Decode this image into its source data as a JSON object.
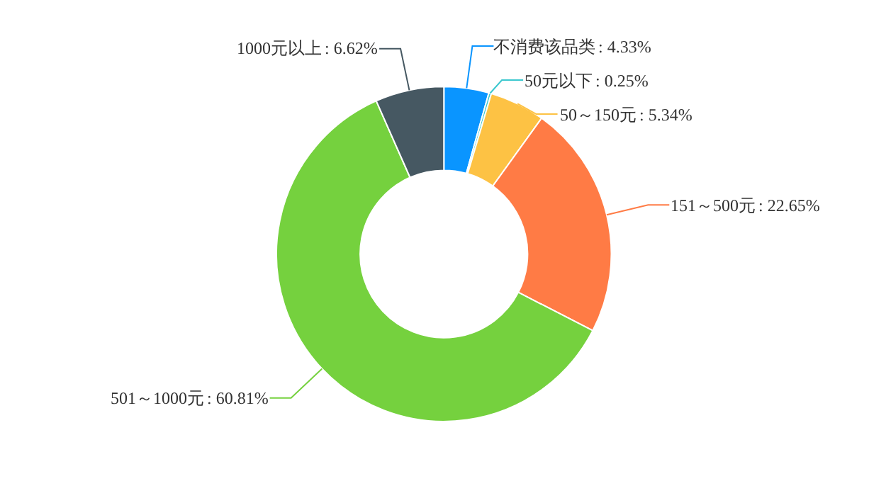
{
  "chart_data": {
    "type": "donut",
    "categories": [
      "不消费该品类",
      "50元以下",
      "50～150元",
      "151～500元",
      "501～1000元",
      "1000元以上"
    ],
    "values": [
      4.33,
      0.25,
      5.34,
      22.65,
      60.81,
      6.62
    ],
    "colors": [
      "#0a95ff",
      "#3cc8cf",
      "#fdc244",
      "#ff7b45",
      "#75d13e",
      "#465862"
    ],
    "value_labels": [
      ": 4.33%",
      ": 0.25%",
      ": 5.34%",
      ": 22.65%",
      ": 60.81%",
      ": 6.62%"
    ],
    "legend": false
  }
}
